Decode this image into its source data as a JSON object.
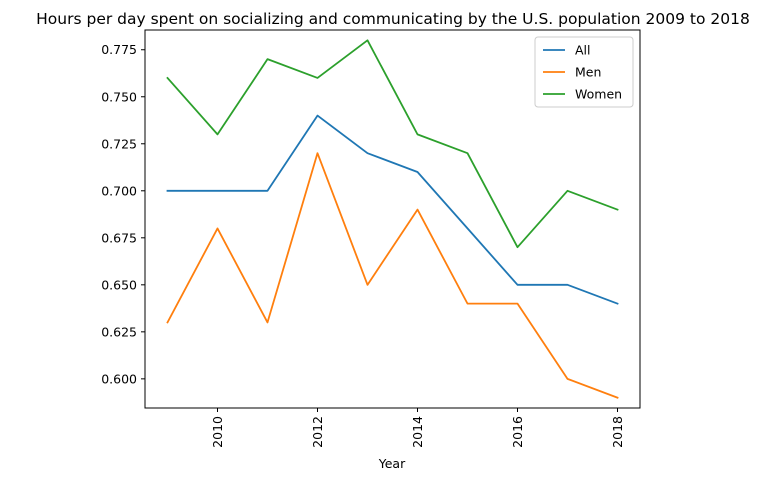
{
  "chart_data": {
    "type": "line",
    "title": "Hours per day spent on socializing and communicating by the U.S. population 2009 to 2018",
    "xlabel": "Year",
    "ylabel": "",
    "x": [
      2009,
      2010,
      2011,
      2012,
      2013,
      2014,
      2015,
      2016,
      2017,
      2018
    ],
    "xlim": [
      2008.55,
      2018.45
    ],
    "ylim": [
      0.5845,
      0.7855
    ],
    "xticks": [
      2010,
      2012,
      2014,
      2016,
      2018
    ],
    "xtick_labels": [
      "2010",
      "2012",
      "2014",
      "2016",
      "2018"
    ],
    "xtick_rotation": "vertical",
    "yticks": [
      0.6,
      0.625,
      0.65,
      0.675,
      0.7,
      0.725,
      0.75,
      0.775
    ],
    "ytick_labels": [
      "0.600",
      "0.625",
      "0.650",
      "0.675",
      "0.700",
      "0.725",
      "0.750",
      "0.775"
    ],
    "grid": false,
    "legend_position": "top-right",
    "series": [
      {
        "name": "All",
        "color": "#1f77b4",
        "values": [
          0.7,
          0.7,
          0.7,
          0.74,
          0.72,
          0.71,
          0.68,
          0.65,
          0.65,
          0.64
        ]
      },
      {
        "name": "Men",
        "color": "#ff7f0e",
        "values": [
          0.63,
          0.68,
          0.63,
          0.72,
          0.65,
          0.69,
          0.64,
          0.64,
          0.6,
          0.59
        ]
      },
      {
        "name": "Women",
        "color": "#2ca02c",
        "values": [
          0.76,
          0.73,
          0.77,
          0.76,
          0.78,
          0.73,
          0.72,
          0.67,
          0.7,
          0.69
        ]
      }
    ]
  }
}
